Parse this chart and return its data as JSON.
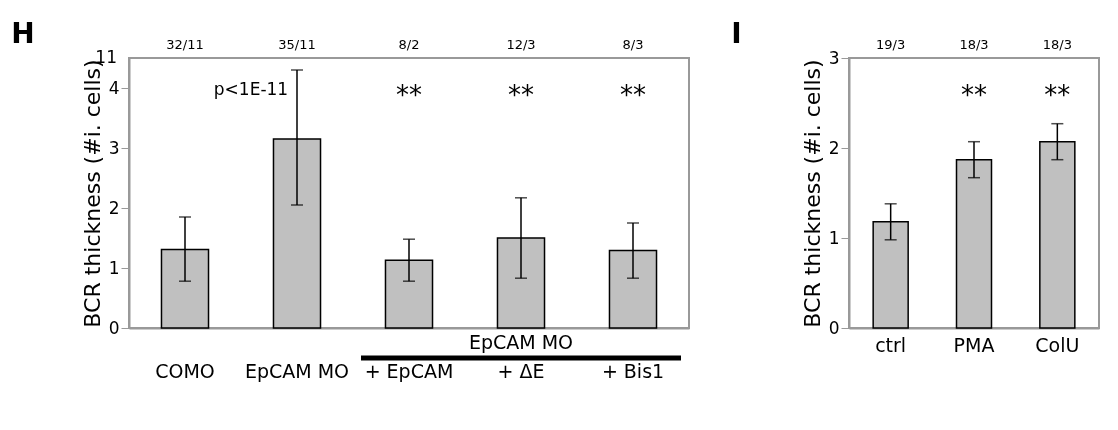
{
  "chart_data": [
    {
      "type": "bar",
      "title": "H",
      "ylabel": "BCR thickness (#i. cells)",
      "categories": [
        "COMO",
        "EpCAM MO",
        "+ EpCAM",
        "+ ΔE",
        "+ Bis1"
      ],
      "color": "#c0c0c0",
      "values": [
        1.31,
        3.15,
        1.13,
        1.5,
        1.29
      ],
      "errors": [
        [
          0.78,
          1.85
        ],
        [
          2.05,
          4.3
        ],
        [
          0.78,
          1.48
        ],
        [
          0.83,
          2.17
        ],
        [
          0.83,
          1.75
        ]
      ],
      "ylim": [
        0,
        4.5
      ],
      "yticks": [
        0,
        1,
        2,
        3,
        4
      ],
      "annotations": [
        "32/11",
        "35/11",
        "8/2",
        "12/3",
        "8/3",
        "**",
        "**",
        "**",
        "p<1E-11",
        "EpCAM MO",
        "11"
      ]
    },
    {
      "type": "bar",
      "title": "I",
      "ylabel": "BCR thickness (#i. cells)",
      "categories": [
        "ctrl",
        "PMA",
        "ColU"
      ],
      "color": "#c0c0c0",
      "values": [
        1.18,
        1.87,
        2.07
      ],
      "errors": [
        [
          0.98,
          1.38
        ],
        [
          1.67,
          2.07
        ],
        [
          1.87,
          2.27
        ]
      ],
      "ylim": [
        0,
        3
      ],
      "yticks": [
        0,
        1,
        2,
        3
      ],
      "annotations": [
        "19/3",
        "18/3",
        "18/3",
        "**",
        "**"
      ]
    }
  ]
}
